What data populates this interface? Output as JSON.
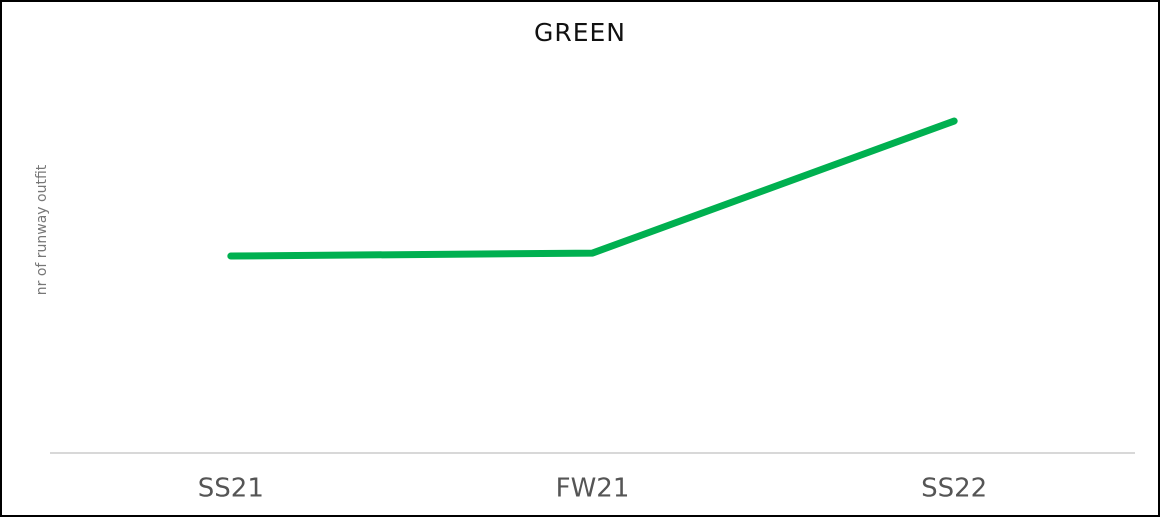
{
  "chart_data": {
    "type": "line",
    "title": "GREEN",
    "y_label": "nr of runway outfit",
    "categories": [
      "SS21",
      "FW21",
      "SS22"
    ],
    "series": [
      {
        "name": "GREEN",
        "color": "#00b050",
        "values": [
          52.8,
          53.6,
          89
        ]
      }
    ],
    "ylim": [
      0,
      100
    ]
  }
}
